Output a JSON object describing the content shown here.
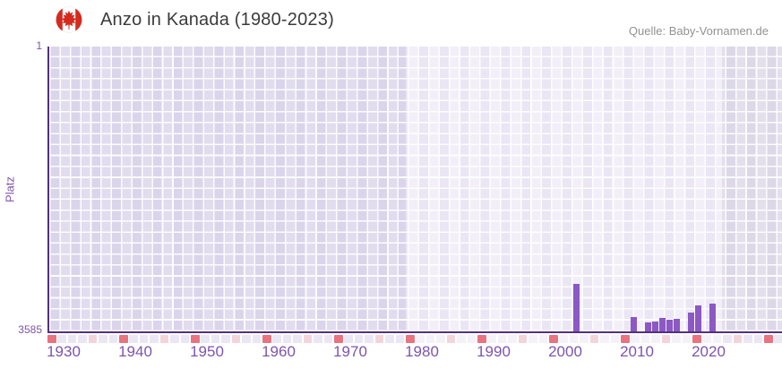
{
  "header": {
    "title": "Anzo in Kanada (1980-2023)",
    "source": "Quelle: Baby-Vornamen.de",
    "flag_icon": "canada-flag-icon"
  },
  "chart_data": {
    "type": "bar",
    "title": "Anzo in Kanada (1980-2023)",
    "xlabel": "",
    "ylabel": "Platz",
    "y_axis": {
      "top_label": "1",
      "bottom_label": "3585",
      "min": 1,
      "max": 3585,
      "inverted": true
    },
    "x_ticks": [
      1930,
      1940,
      1950,
      1960,
      1970,
      1980,
      1990,
      2000,
      2010,
      2020
    ],
    "x_range_years": [
      1928,
      2030
    ],
    "highlight_band_years": [
      1978,
      2022
    ],
    "grid": true,
    "legend": "none",
    "points": [
      {
        "year": 2001,
        "rank": 2990
      },
      {
        "year": 2009,
        "rank": 3410
      },
      {
        "year": 2011,
        "rank": 3470
      },
      {
        "year": 2012,
        "rank": 3465
      },
      {
        "year": 2013,
        "rank": 3420
      },
      {
        "year": 2014,
        "rank": 3440
      },
      {
        "year": 2015,
        "rank": 3430
      },
      {
        "year": 2017,
        "rank": 3350
      },
      {
        "year": 2018,
        "rank": 3260
      },
      {
        "year": 2020,
        "rank": 3230
      }
    ],
    "colors": {
      "bar": "#8b58c4",
      "axis": "#53307f",
      "tick_label": "#7e54ad",
      "band_light": "#f2eff9",
      "band_dark": "#e1ddee",
      "band_right": "#e3e0eb",
      "strip_red": "#e9737f",
      "strip_pink": "#f3d4db",
      "strip_lavender_dark": "#eae6f3",
      "strip_lavender_light": "#f4f1f9",
      "title_text": "#3b3b3b",
      "source_text": "#929292",
      "flag_red": "#d52b1e"
    }
  }
}
